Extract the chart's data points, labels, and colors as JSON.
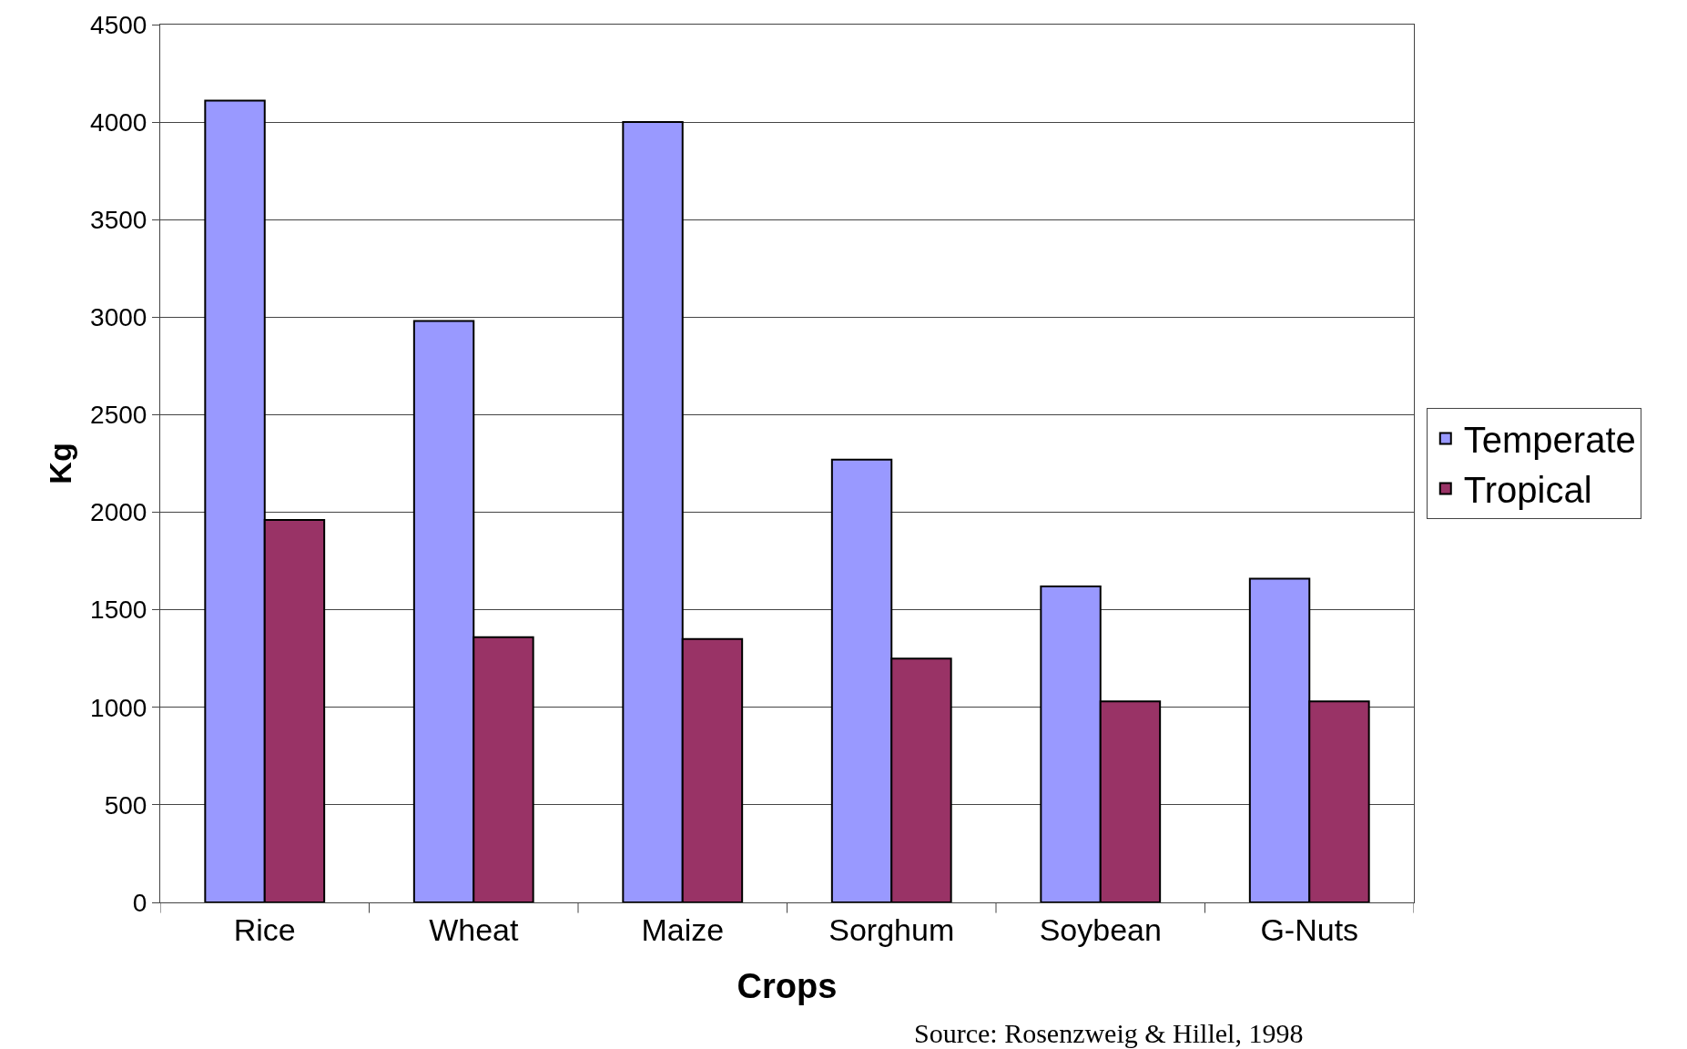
{
  "chart_data": {
    "type": "bar",
    "xlabel": "Crops",
    "ylabel": "Kg",
    "categories": [
      "Rice",
      "Wheat",
      "Maize",
      "Sorghum",
      "Soybean",
      "G-Nuts"
    ],
    "series": [
      {
        "name": "Temperate",
        "color": "#9999ff",
        "values": [
          4110,
          2980,
          4000,
          2270,
          1620,
          1660
        ]
      },
      {
        "name": "Tropical",
        "color": "#993366",
        "values": [
          1960,
          1360,
          1350,
          1250,
          1030,
          1030
        ]
      }
    ],
    "ylim": [
      0,
      4500
    ],
    "yticks": [
      0,
      500,
      1000,
      1500,
      2000,
      2500,
      3000,
      3500,
      4000,
      4500
    ],
    "grid": "y",
    "legend": "right",
    "annotations": [
      "Source: Rosenzweig & Hillel, 1998"
    ]
  }
}
